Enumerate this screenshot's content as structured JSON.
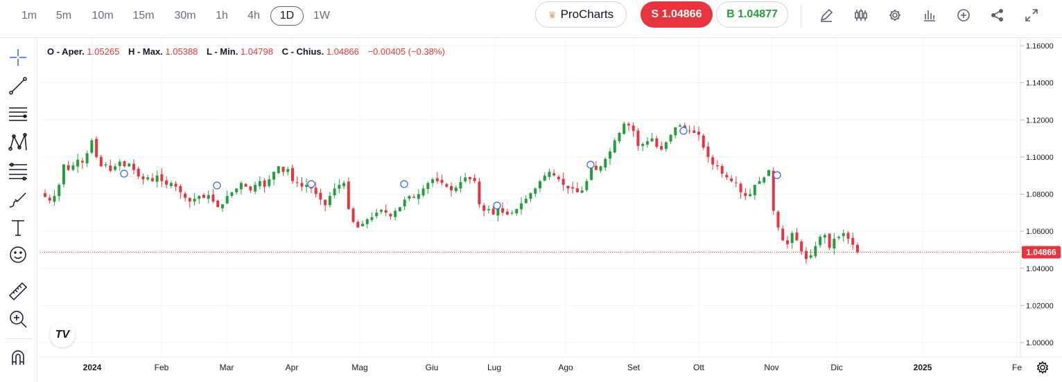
{
  "toolbar": {
    "timeframes": [
      "1m",
      "5m",
      "10m",
      "15m",
      "30m",
      "1h",
      "4h",
      "1D",
      "1W"
    ],
    "active_timeframe": "1D",
    "procharts_label": "ProCharts",
    "sell_label": "S 1.04866",
    "buy_label": "B 1.04877",
    "icons": [
      "pencil-icon",
      "candles-icon",
      "gear-icon",
      "bars-icon",
      "plus-circle-icon",
      "share-icon",
      "expand-icon"
    ]
  },
  "left_tools": [
    "crosshair-icon",
    "trend-line-icon",
    "horizontal-lines-icon",
    "pattern-icon",
    "fib-icon",
    "brush-icon",
    "text-icon",
    "emoji-icon",
    "ruler-icon",
    "zoom-in-icon",
    "magnet-icon"
  ],
  "ohlc": {
    "open_label": "O - Aper.",
    "open": "1.05265",
    "high_label": "H - Max.",
    "high": "1.05388",
    "low_label": "L - Min.",
    "low": "1.04798",
    "close_label": "C - Chius.",
    "close": "1.04866",
    "change": "−0.00405 (−0.38%)"
  },
  "colors": {
    "up": "#22a038",
    "down": "#e8343d",
    "grid": "#f0f3fa",
    "marker": "#2962ff"
  },
  "chart_data": {
    "type": "candlestick",
    "y_ticks": [
      "1.16000",
      "1.14000",
      "1.12000",
      "1.10000",
      "1.08000",
      "1.06000",
      "1.04000",
      "1.02000",
      "1.00000"
    ],
    "ylim": [
      0.995,
      1.163
    ],
    "x_ticks": [
      "2024",
      "Feb",
      "Mar",
      "Apr",
      "Mag",
      "Giu",
      "Lug",
      "Ago",
      "Set",
      "Ott",
      "Nov",
      "Dic",
      "2025",
      "Fe"
    ],
    "last_price": 1.04866,
    "last_price_label": "1.04866",
    "closes": [
      1.0785,
      1.0765,
      1.079,
      1.085,
      1.096,
      1.093,
      1.0955,
      1.0985,
      1.097,
      1.102,
      1.109,
      1.1,
      1.095,
      1.096,
      1.0925,
      1.095,
      1.0975,
      1.095,
      1.0965,
      1.093,
      1.0895,
      1.088,
      1.089,
      1.087,
      1.09,
      1.087,
      1.085,
      1.086,
      1.084,
      1.081,
      1.078,
      1.076,
      1.0775,
      1.079,
      1.078,
      1.0795,
      1.076,
      1.073,
      1.0745,
      1.079,
      1.081,
      1.083,
      1.086,
      1.084,
      1.082,
      1.085,
      1.087,
      1.084,
      1.088,
      1.092,
      1.095,
      1.092,
      1.0935,
      1.087,
      1.086,
      1.084,
      1.085,
      1.083,
      1.08,
      1.077,
      1.074,
      1.079,
      1.083,
      1.085,
      1.086,
      1.072,
      1.065,
      1.062,
      1.064,
      1.0665,
      1.0675,
      1.07,
      1.0715,
      1.07,
      1.068,
      1.071,
      1.073,
      1.077,
      1.079,
      1.078,
      1.08,
      1.083,
      1.086,
      1.088,
      1.087,
      1.086,
      1.084,
      1.082,
      1.0835,
      1.0865,
      1.089,
      1.088,
      1.087,
      1.0745,
      1.071,
      1.072,
      1.069,
      1.072,
      1.07,
      1.069,
      1.07,
      1.072,
      1.075,
      1.0775,
      1.0805,
      1.083,
      1.087,
      1.09,
      1.092,
      1.09,
      1.088,
      1.085,
      1.083,
      1.083,
      1.081,
      1.082,
      1.087,
      1.095,
      1.093,
      1.095,
      1.099,
      1.103,
      1.109,
      1.113,
      1.118,
      1.117,
      1.114,
      1.106,
      1.107,
      1.1085,
      1.11,
      1.1055,
      1.104,
      1.108,
      1.112,
      1.116,
      1.117,
      1.115,
      1.114,
      1.113,
      1.112,
      1.105,
      1.1,
      1.096,
      1.095,
      1.091,
      1.089,
      1.087,
      1.086,
      1.081,
      1.079,
      1.08,
      1.085,
      1.087,
      1.089,
      1.093,
      1.071,
      1.062,
      1.055,
      1.053,
      1.059,
      1.055,
      1.049,
      1.045,
      1.047,
      1.052,
      1.057,
      1.058,
      1.051,
      1.056,
      1.057,
      1.059,
      1.056,
      1.0527,
      1.04866
    ]
  }
}
